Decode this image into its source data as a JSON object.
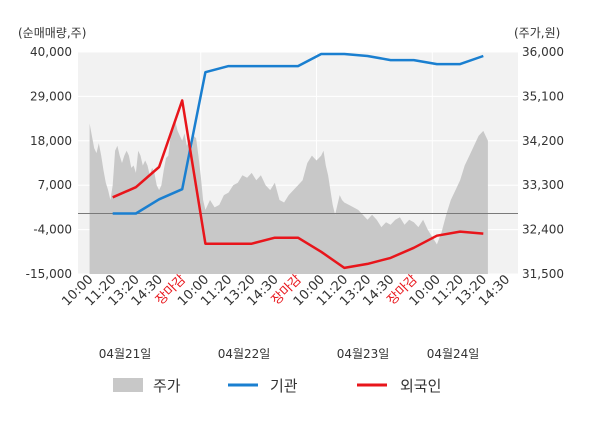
{
  "chart_data": {
    "type": "line",
    "left_axis_unit": "(순매매량,주)",
    "right_axis_unit": "(주가,원)",
    "left_ticks": [
      "40,000",
      "29,000",
      "18,000",
      "7,000",
      "-4,000",
      "-15,000"
    ],
    "left_tick_values": [
      40000,
      29000,
      18000,
      7000,
      -4000,
      -15000
    ],
    "right_ticks": [
      "36,000",
      "35,100",
      "34,200",
      "33,300",
      "32,400",
      "31,500"
    ],
    "right_tick_values": [
      36000,
      35100,
      34200,
      33300,
      32400,
      31500
    ],
    "ylim_left": [
      -15000,
      40000
    ],
    "ylim_right": [
      31500,
      36000
    ],
    "x_labels": [
      {
        "text": "10:00",
        "color": "#333333"
      },
      {
        "text": "11:20",
        "color": "#333333"
      },
      {
        "text": "13:20",
        "color": "#333333"
      },
      {
        "text": "14:30",
        "color": "#333333"
      },
      {
        "text": "장마감",
        "color": "#e8151b"
      },
      {
        "text": "10:00",
        "color": "#333333"
      },
      {
        "text": "11:20",
        "color": "#333333"
      },
      {
        "text": "13:20",
        "color": "#333333"
      },
      {
        "text": "14:30",
        "color": "#333333"
      },
      {
        "text": "장마감",
        "color": "#e8151b"
      },
      {
        "text": "10:00",
        "color": "#333333"
      },
      {
        "text": "11:20",
        "color": "#333333"
      },
      {
        "text": "13:20",
        "color": "#333333"
      },
      {
        "text": "14:30",
        "color": "#333333"
      },
      {
        "text": "장마감",
        "color": "#e8151b"
      },
      {
        "text": "10:00",
        "color": "#333333"
      },
      {
        "text": "11:20",
        "color": "#333333"
      },
      {
        "text": "13:20",
        "color": "#333333"
      },
      {
        "text": "14:30",
        "color": "#333333"
      }
    ],
    "dates": [
      "04월21일",
      "04월22일",
      "04월23일",
      "04월24일"
    ],
    "day_boundaries": [
      4,
      9,
      14
    ],
    "x_count": 19,
    "series": [
      {
        "name": "기관",
        "color": "#1a7fd0",
        "axis": "left",
        "points": [
          [
            1,
            0
          ],
          [
            2,
            0
          ],
          [
            3,
            3500
          ],
          [
            4,
            6000
          ],
          [
            5,
            35000
          ],
          [
            6,
            36500
          ],
          [
            7,
            36500
          ],
          [
            8,
            36500
          ],
          [
            9,
            36500
          ],
          [
            10,
            39500
          ],
          [
            11,
            39500
          ],
          [
            12,
            39000
          ],
          [
            13,
            38000
          ],
          [
            14,
            38000
          ],
          [
            15,
            37000
          ],
          [
            16,
            37000
          ],
          [
            17,
            39000
          ]
        ]
      },
      {
        "name": "외국인",
        "color": "#e8151b",
        "axis": "left",
        "points": [
          [
            1,
            4000
          ],
          [
            2,
            6500
          ],
          [
            3,
            11500
          ],
          [
            4,
            28000
          ],
          [
            5,
            -7500
          ],
          [
            6,
            -7500
          ],
          [
            7,
            -7500
          ],
          [
            8,
            -6000
          ],
          [
            9,
            -6000
          ],
          [
            10,
            -9500
          ],
          [
            11,
            -13500
          ],
          [
            12,
            -12500
          ],
          [
            13,
            -11000
          ],
          [
            14,
            -8500
          ],
          [
            15,
            -5500
          ],
          [
            16,
            -4500
          ],
          [
            17,
            -5000
          ]
        ]
      }
    ],
    "price_series": {
      "name": "주가",
      "color": "#c8c8c8",
      "axis": "right",
      "points": [
        [
          0,
          34550
        ],
        [
          0.1,
          34300
        ],
        [
          0.2,
          34050
        ],
        [
          0.3,
          33950
        ],
        [
          0.4,
          34150
        ],
        [
          0.5,
          33900
        ],
        [
          0.6,
          33600
        ],
        [
          0.7,
          33350
        ],
        [
          0.8,
          33200
        ],
        [
          0.9,
          33000
        ],
        [
          1.0,
          33300
        ],
        [
          1.1,
          34000
        ],
        [
          1.2,
          34100
        ],
        [
          1.3,
          33900
        ],
        [
          1.4,
          33750
        ],
        [
          1.5,
          33900
        ],
        [
          1.6,
          34000
        ],
        [
          1.7,
          33900
        ],
        [
          1.8,
          33650
        ],
        [
          1.9,
          33700
        ],
        [
          2.0,
          33550
        ],
        [
          2.1,
          34000
        ],
        [
          2.2,
          33900
        ],
        [
          2.3,
          33700
        ],
        [
          2.4,
          33800
        ],
        [
          2.5,
          33700
        ],
        [
          2.6,
          33500
        ],
        [
          2.7,
          33650
        ],
        [
          2.8,
          33550
        ],
        [
          2.9,
          33300
        ],
        [
          3.0,
          33200
        ],
        [
          3.1,
          33300
        ],
        [
          3.2,
          33600
        ],
        [
          3.3,
          33850
        ],
        [
          3.4,
          33900
        ],
        [
          3.5,
          34300
        ],
        [
          3.6,
          34450
        ],
        [
          3.7,
          34600
        ],
        [
          3.8,
          34400
        ],
        [
          3.9,
          34300
        ],
        [
          4.0,
          34200
        ],
        [
          4.1,
          34350
        ],
        [
          4.2,
          34100
        ],
        [
          4.3,
          34200
        ],
        [
          4.4,
          34000
        ],
        [
          4.5,
          34300
        ],
        [
          4.6,
          34250
        ],
        [
          4.7,
          33900
        ],
        [
          4.8,
          33500
        ],
        [
          4.9,
          33000
        ],
        [
          5.0,
          32800
        ],
        [
          5.2,
          33000
        ],
        [
          5.4,
          32850
        ],
        [
          5.6,
          32900
        ],
        [
          5.8,
          33100
        ],
        [
          6.0,
          33150
        ],
        [
          6.2,
          33300
        ],
        [
          6.4,
          33350
        ],
        [
          6.6,
          33500
        ],
        [
          6.8,
          33450
        ],
        [
          7.0,
          33550
        ],
        [
          7.2,
          33400
        ],
        [
          7.4,
          33500
        ],
        [
          7.6,
          33300
        ],
        [
          7.8,
          33200
        ],
        [
          8.0,
          33350
        ],
        [
          8.2,
          33000
        ],
        [
          8.4,
          32950
        ],
        [
          8.6,
          33100
        ],
        [
          8.8,
          33200
        ],
        [
          9.0,
          33300
        ],
        [
          9.2,
          33400
        ],
        [
          9.4,
          33750
        ],
        [
          9.6,
          33900
        ],
        [
          9.8,
          33800
        ],
        [
          10.0,
          33900
        ],
        [
          10.1,
          34000
        ],
        [
          10.2,
          33700
        ],
        [
          10.3,
          33500
        ],
        [
          10.4,
          33200
        ],
        [
          10.5,
          32900
        ],
        [
          10.6,
          32700
        ],
        [
          10.7,
          32900
        ],
        [
          10.8,
          33100
        ],
        [
          10.9,
          33000
        ],
        [
          11.0,
          32950
        ],
        [
          11.2,
          32900
        ],
        [
          11.4,
          32850
        ],
        [
          11.6,
          32800
        ],
        [
          11.8,
          32700
        ],
        [
          12.0,
          32600
        ],
        [
          12.2,
          32700
        ],
        [
          12.4,
          32600
        ],
        [
          12.6,
          32450
        ],
        [
          12.8,
          32550
        ],
        [
          13.0,
          32500
        ],
        [
          13.2,
          32600
        ],
        [
          13.4,
          32650
        ],
        [
          13.6,
          32500
        ],
        [
          13.8,
          32600
        ],
        [
          14.0,
          32550
        ],
        [
          14.2,
          32450
        ],
        [
          14.4,
          32600
        ],
        [
          14.6,
          32400
        ],
        [
          14.8,
          32250
        ],
        [
          15.0,
          32100
        ],
        [
          15.2,
          32350
        ],
        [
          15.4,
          32700
        ],
        [
          15.6,
          33000
        ],
        [
          15.8,
          33200
        ],
        [
          16.0,
          33400
        ],
        [
          16.2,
          33700
        ],
        [
          16.4,
          33900
        ],
        [
          16.6,
          34100
        ],
        [
          16.8,
          34300
        ],
        [
          17.0,
          34400
        ],
        [
          17.1,
          34300
        ],
        [
          17.2,
          34200
        ]
      ]
    },
    "zero_line": 0,
    "grid": true,
    "legend_position": "bottom",
    "legend": [
      {
        "label": "주가",
        "type": "area",
        "color": "#c8c8c8"
      },
      {
        "label": "기관",
        "type": "line",
        "color": "#1a7fd0"
      },
      {
        "label": "외국인",
        "type": "line",
        "color": "#e8151b"
      }
    ]
  }
}
